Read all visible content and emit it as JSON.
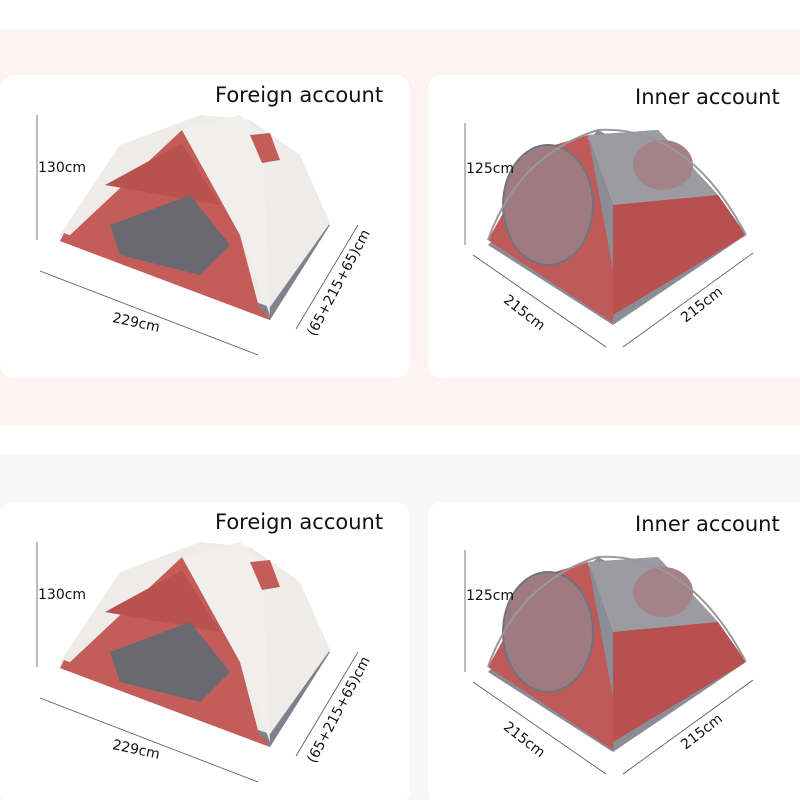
{
  "colors": {
    "top_band": "#fdf3f1",
    "bottom_band": "#f7f7f7",
    "tent_red": "#c05a58",
    "fly_white": "#efedeb",
    "floor_grey": "#8a8c96"
  },
  "panels": [
    {
      "outer": {
        "title": "Foreign account",
        "height": "130cm",
        "length": "229cm",
        "width": "(65+215+65)cm"
      },
      "inner": {
        "title": "Inner account",
        "height": "125cm",
        "side_a": "215cm",
        "side_b": "215cm"
      }
    },
    {
      "outer": {
        "title": "Foreign account",
        "height": "130cm",
        "length": "229cm",
        "width": "(65+215+65)cm"
      },
      "inner": {
        "title": "Inner account",
        "height": "125cm",
        "side_a": "215cm",
        "side_b": "215cm"
      }
    }
  ]
}
